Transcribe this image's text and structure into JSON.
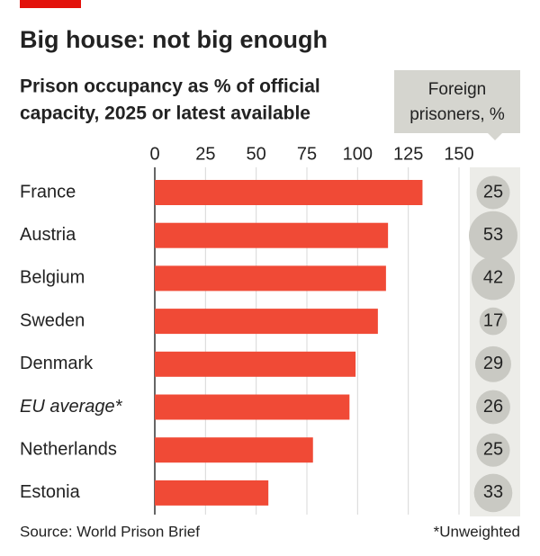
{
  "chart_data": {
    "type": "bar",
    "title": "Big house: not big enough",
    "subtitle": [
      "Prison occupancy as % of official",
      "capacity, 2025 or latest available"
    ],
    "categories": [
      "France",
      "Austria",
      "Belgium",
      "Sweden",
      "Denmark",
      "EU average*",
      "Netherlands",
      "Estonia"
    ],
    "values": [
      132,
      115,
      114,
      110,
      99,
      96,
      78,
      56
    ],
    "color": "#f04a36",
    "xlim": [
      0,
      150
    ],
    "xticks": [
      0,
      25,
      50,
      75,
      100,
      125,
      150
    ],
    "grid": true,
    "italic_category": 5,
    "bubbles": {
      "title": [
        "Foreign",
        "prisoners, %"
      ],
      "values": [
        25,
        53,
        42,
        17,
        29,
        26,
        25,
        33
      ],
      "color": "#c9c9c3"
    },
    "source": "Source: World Prison Brief",
    "note": "*Unweighted"
  }
}
